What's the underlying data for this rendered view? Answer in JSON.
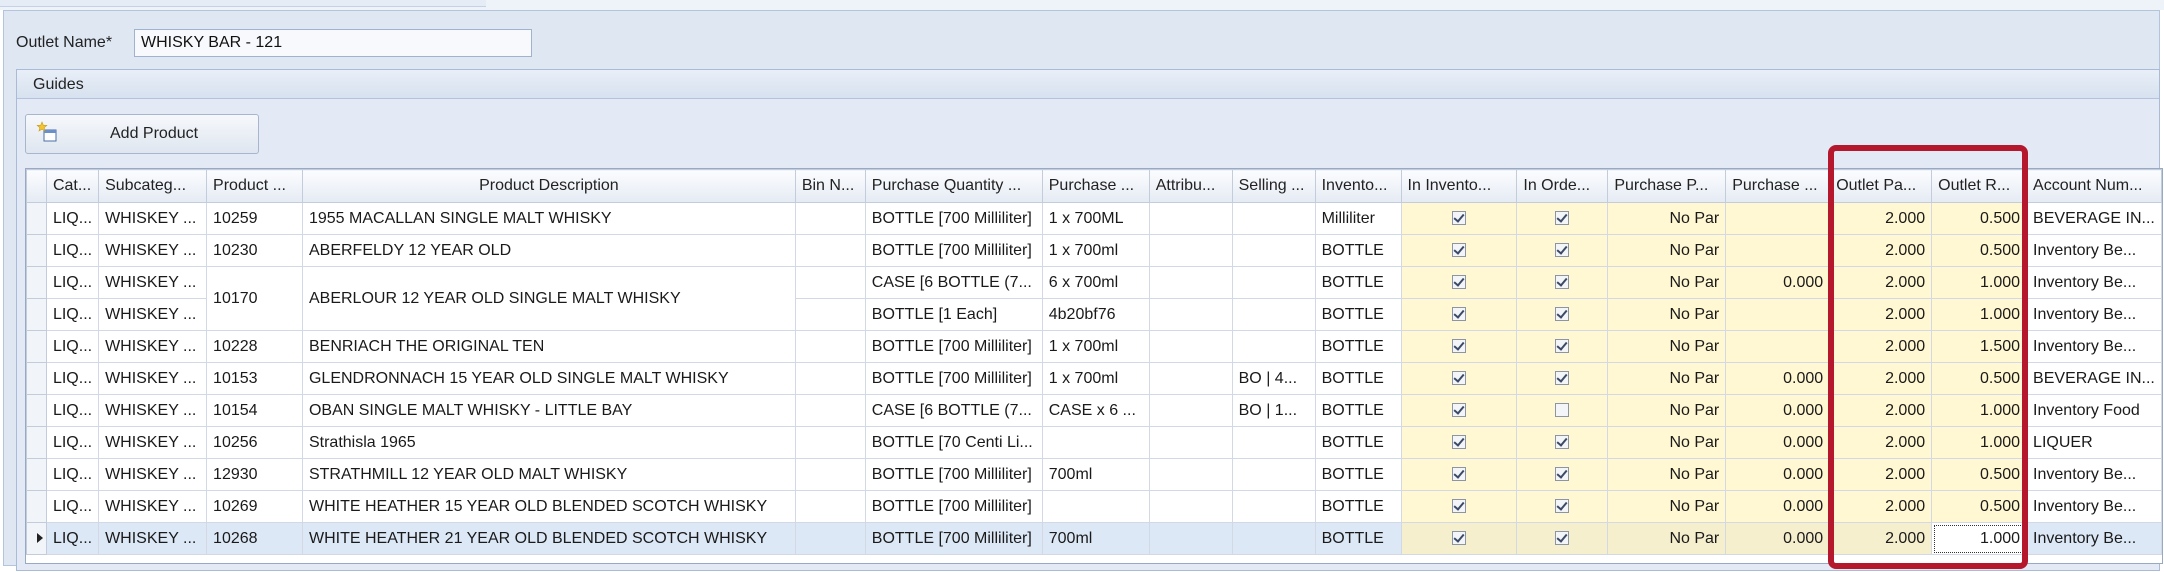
{
  "form": {
    "outlet_name_label": "Outlet Name*",
    "outlet_name_value": "WHISKY BAR - 121"
  },
  "guides": {
    "title": "Guides",
    "add_product_label": "Add Product"
  },
  "columns": [
    "Cat...",
    "Subcateg...",
    "Product ...",
    "Product Description",
    "Bin N...",
    "Purchase Quantity ...",
    "Purchase ...",
    "Attribu...",
    "Selling ...",
    "Invento...",
    "In Invento...",
    "In Orde...",
    "Purchase P...",
    "Purchase ...",
    "Outlet Pa...",
    "Outlet R...",
    "Account Num..."
  ],
  "rows": [
    {
      "cat": "LIQ...",
      "sub": "WHISKEY ...",
      "prod": "10259",
      "desc": "1955 MACALLAN SINGLE MALT WHISKY",
      "bin": "",
      "pq": "BOTTLE [700 Milliliter]",
      "pur": "1 x 700ML",
      "attr": "",
      "sell": "",
      "inv": "Milliliter",
      "in_inv": true,
      "in_ord": true,
      "pp": "No Par",
      "pv": "",
      "opar": "2.000",
      "or": "0.500",
      "acct": "BEVERAGE IN..."
    },
    {
      "cat": "LIQ...",
      "sub": "WHISKEY ...",
      "prod": "10230",
      "desc": "ABERFELDY 12 YEAR OLD",
      "bin": "",
      "pq": "BOTTLE [700 Milliliter]",
      "pur": "1 x 700ml",
      "attr": "",
      "sell": "",
      "inv": "BOTTLE",
      "in_inv": true,
      "in_ord": true,
      "pp": "No Par",
      "pv": "",
      "opar": "2.000",
      "or": "0.500",
      "acct": "Inventory Be..."
    },
    {
      "cat": "LIQ...",
      "sub": "WHISKEY ...",
      "prod": "10170",
      "desc": "ABERLOUR 12 YEAR OLD SINGLE MALT WHISKY",
      "bin": "",
      "pq": "CASE [6 BOTTLE (7...",
      "pur": "6 x 700ml",
      "attr": "",
      "sell": "",
      "inv": "BOTTLE",
      "in_inv": true,
      "in_ord": true,
      "pp": "No Par",
      "pv": "0.000",
      "opar": "2.000",
      "or": "1.000",
      "acct": "Inventory Be..."
    },
    {
      "cat": "LIQ...",
      "sub": "WHISKEY ...",
      "prod": "",
      "desc": "",
      "bin": "",
      "pq": "BOTTLE [1 Each]",
      "pur": "4b20bf76",
      "attr": "",
      "sell": "",
      "inv": "BOTTLE",
      "in_inv": true,
      "in_ord": true,
      "pp": "No Par",
      "pv": "",
      "opar": "2.000",
      "or": "1.000",
      "acct": "Inventory Be..."
    },
    {
      "cat": "LIQ...",
      "sub": "WHISKEY ...",
      "prod": "10228",
      "desc": "BENRIACH THE ORIGINAL TEN",
      "bin": "",
      "pq": "BOTTLE [700 Milliliter]",
      "pur": "1 x 700ml",
      "attr": "",
      "sell": "",
      "inv": "BOTTLE",
      "in_inv": true,
      "in_ord": true,
      "pp": "No Par",
      "pv": "",
      "opar": "2.000",
      "or": "1.500",
      "acct": "Inventory Be..."
    },
    {
      "cat": "LIQ...",
      "sub": "WHISKEY ...",
      "prod": "10153",
      "desc": "GLENDRONNACH 15 YEAR OLD SINGLE MALT WHISKY",
      "bin": "",
      "pq": "BOTTLE [700 Milliliter]",
      "pur": "1 x 700ml",
      "attr": "",
      "sell": "BO | 4...",
      "inv": "BOTTLE",
      "in_inv": true,
      "in_ord": true,
      "pp": "No Par",
      "pv": "0.000",
      "opar": "2.000",
      "or": "0.500",
      "acct": "BEVERAGE IN..."
    },
    {
      "cat": "LIQ...",
      "sub": "WHISKEY ...",
      "prod": "10154",
      "desc": "OBAN SINGLE MALT WHISKY - LITTLE BAY",
      "bin": "",
      "pq": "CASE [6 BOTTLE (7...",
      "pur": "CASE x 6 ...",
      "attr": "",
      "sell": "BO | 1...",
      "inv": "BOTTLE",
      "in_inv": true,
      "in_ord": false,
      "pp": "No Par",
      "pv": "0.000",
      "opar": "2.000",
      "or": "1.000",
      "acct": "Inventory Food"
    },
    {
      "cat": "LIQ...",
      "sub": "WHISKEY ...",
      "prod": "10256",
      "desc": "Strathisla 1965",
      "bin": "",
      "pq": "BOTTLE [70 Centi Li...",
      "pur": "",
      "attr": "",
      "sell": "",
      "inv": "BOTTLE",
      "in_inv": true,
      "in_ord": true,
      "pp": "No Par",
      "pv": "0.000",
      "opar": "2.000",
      "or": "1.000",
      "acct": "LIQUER"
    },
    {
      "cat": "LIQ...",
      "sub": "WHISKEY ...",
      "prod": "12930",
      "desc": "STRATHMILL 12 YEAR OLD MALT WHISKY",
      "bin": "",
      "pq": "BOTTLE [700 Milliliter]",
      "pur": "700ml",
      "attr": "",
      "sell": "",
      "inv": "BOTTLE",
      "in_inv": true,
      "in_ord": true,
      "pp": "No Par",
      "pv": "0.000",
      "opar": "2.000",
      "or": "0.500",
      "acct": "Inventory Be..."
    },
    {
      "cat": "LIQ...",
      "sub": "WHISKEY ...",
      "prod": "10269",
      "desc": "WHITE HEATHER 15 YEAR OLD BLENDED SCOTCH WHISKY",
      "bin": "",
      "pq": "BOTTLE [700 Milliliter]",
      "pur": "",
      "attr": "",
      "sell": "",
      "inv": "BOTTLE",
      "in_inv": true,
      "in_ord": true,
      "pp": "No Par",
      "pv": "0.000",
      "opar": "2.000",
      "or": "0.500",
      "acct": "Inventory Be..."
    },
    {
      "cat": "LIQ...",
      "sub": "WHISKEY ...",
      "prod": "10268",
      "desc": "WHITE HEATHER 21 YEAR OLD BLENDED SCOTCH WHISKY",
      "bin": "",
      "pq": "BOTTLE [700 Milliliter]",
      "pur": "700ml",
      "attr": "",
      "sell": "",
      "inv": "BOTTLE",
      "in_inv": true,
      "in_ord": true,
      "pp": "No Par",
      "pv": "0.000",
      "opar": "2.000",
      "or": "1.000",
      "acct": "Inventory Be..."
    }
  ],
  "focused_row_index": 10,
  "colors": {
    "editable_cell": "#fff8d2",
    "highlight_box": "#b5182d",
    "panel_background": "#dfe7f3"
  }
}
